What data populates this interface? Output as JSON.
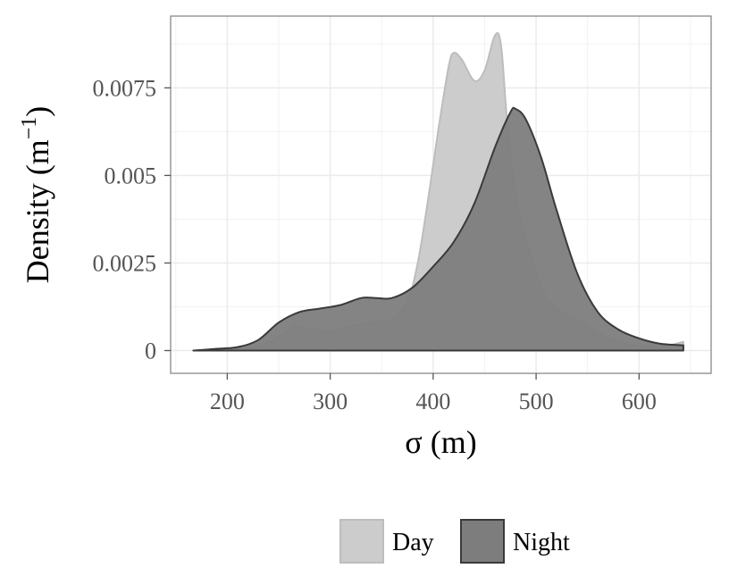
{
  "chart_data": {
    "type": "area",
    "xlabel": "σ (m)",
    "ylabel": "Density (m",
    "ylabel_sup": "−1",
    "ylabel_tail": ")",
    "xlim": [
      145,
      670
    ],
    "ylim": [
      -0.00065,
      0.00955
    ],
    "xticks": [
      {
        "value": 200,
        "label": "200"
      },
      {
        "value": 300,
        "label": "300"
      },
      {
        "value": 400,
        "label": "400"
      },
      {
        "value": 500,
        "label": "500"
      },
      {
        "value": 600,
        "label": "600"
      }
    ],
    "yticks": [
      {
        "value": 0,
        "label": "0"
      },
      {
        "value": 0.0025,
        "label": "0.0025"
      },
      {
        "value": 0.005,
        "label": "0.005"
      },
      {
        "value": 0.0075,
        "label": "0.0075"
      }
    ],
    "grid": true,
    "legend_position": "bottom",
    "series": [
      {
        "name": "Day",
        "fill": "#cccccc",
        "stroke": "#bdbdbd",
        "points": [
          [
            167,
            0.0
          ],
          [
            190,
            2e-05
          ],
          [
            210,
            5e-05
          ],
          [
            230,
            0.00012
          ],
          [
            245,
            0.00032
          ],
          [
            255,
            0.0005
          ],
          [
            265,
            0.0007
          ],
          [
            280,
            0.0006
          ],
          [
            300,
            0.00055
          ],
          [
            320,
            0.0007
          ],
          [
            340,
            0.0008
          ],
          [
            360,
            0.0009
          ],
          [
            375,
            0.0014
          ],
          [
            385,
            0.0025
          ],
          [
            395,
            0.0043
          ],
          [
            405,
            0.0063
          ],
          [
            415,
            0.0081
          ],
          [
            420,
            0.0085
          ],
          [
            428,
            0.0083
          ],
          [
            440,
            0.0077
          ],
          [
            450,
            0.008
          ],
          [
            460,
            0.009
          ],
          [
            466,
            0.0087
          ],
          [
            472,
            0.0065
          ],
          [
            480,
            0.0045
          ],
          [
            490,
            0.0032
          ],
          [
            500,
            0.0022
          ],
          [
            510,
            0.0015
          ],
          [
            520,
            0.0012
          ],
          [
            540,
            0.0009
          ],
          [
            560,
            0.0005
          ],
          [
            580,
            0.00025
          ],
          [
            600,
            0.00015
          ],
          [
            620,
            0.0001
          ],
          [
            643,
            0.00025
          ]
        ]
      },
      {
        "name": "Night",
        "fill": "#7d7d7d",
        "stroke": "#3a3a3a",
        "points": [
          [
            167,
            0.0
          ],
          [
            190,
            5e-05
          ],
          [
            210,
            0.0001
          ],
          [
            230,
            0.0003
          ],
          [
            250,
            0.0008
          ],
          [
            270,
            0.0011
          ],
          [
            290,
            0.0012
          ],
          [
            310,
            0.0013
          ],
          [
            330,
            0.0015
          ],
          [
            345,
            0.0015
          ],
          [
            360,
            0.0015
          ],
          [
            380,
            0.0018
          ],
          [
            400,
            0.0024
          ],
          [
            420,
            0.0031
          ],
          [
            440,
            0.0042
          ],
          [
            460,
            0.0058
          ],
          [
            475,
            0.0068
          ],
          [
            480,
            0.0069
          ],
          [
            490,
            0.0066
          ],
          [
            505,
            0.0055
          ],
          [
            520,
            0.004
          ],
          [
            540,
            0.0022
          ],
          [
            560,
            0.0011
          ],
          [
            580,
            0.0006
          ],
          [
            600,
            0.00035
          ],
          [
            620,
            0.0002
          ],
          [
            643,
            0.00015
          ]
        ]
      }
    ]
  }
}
